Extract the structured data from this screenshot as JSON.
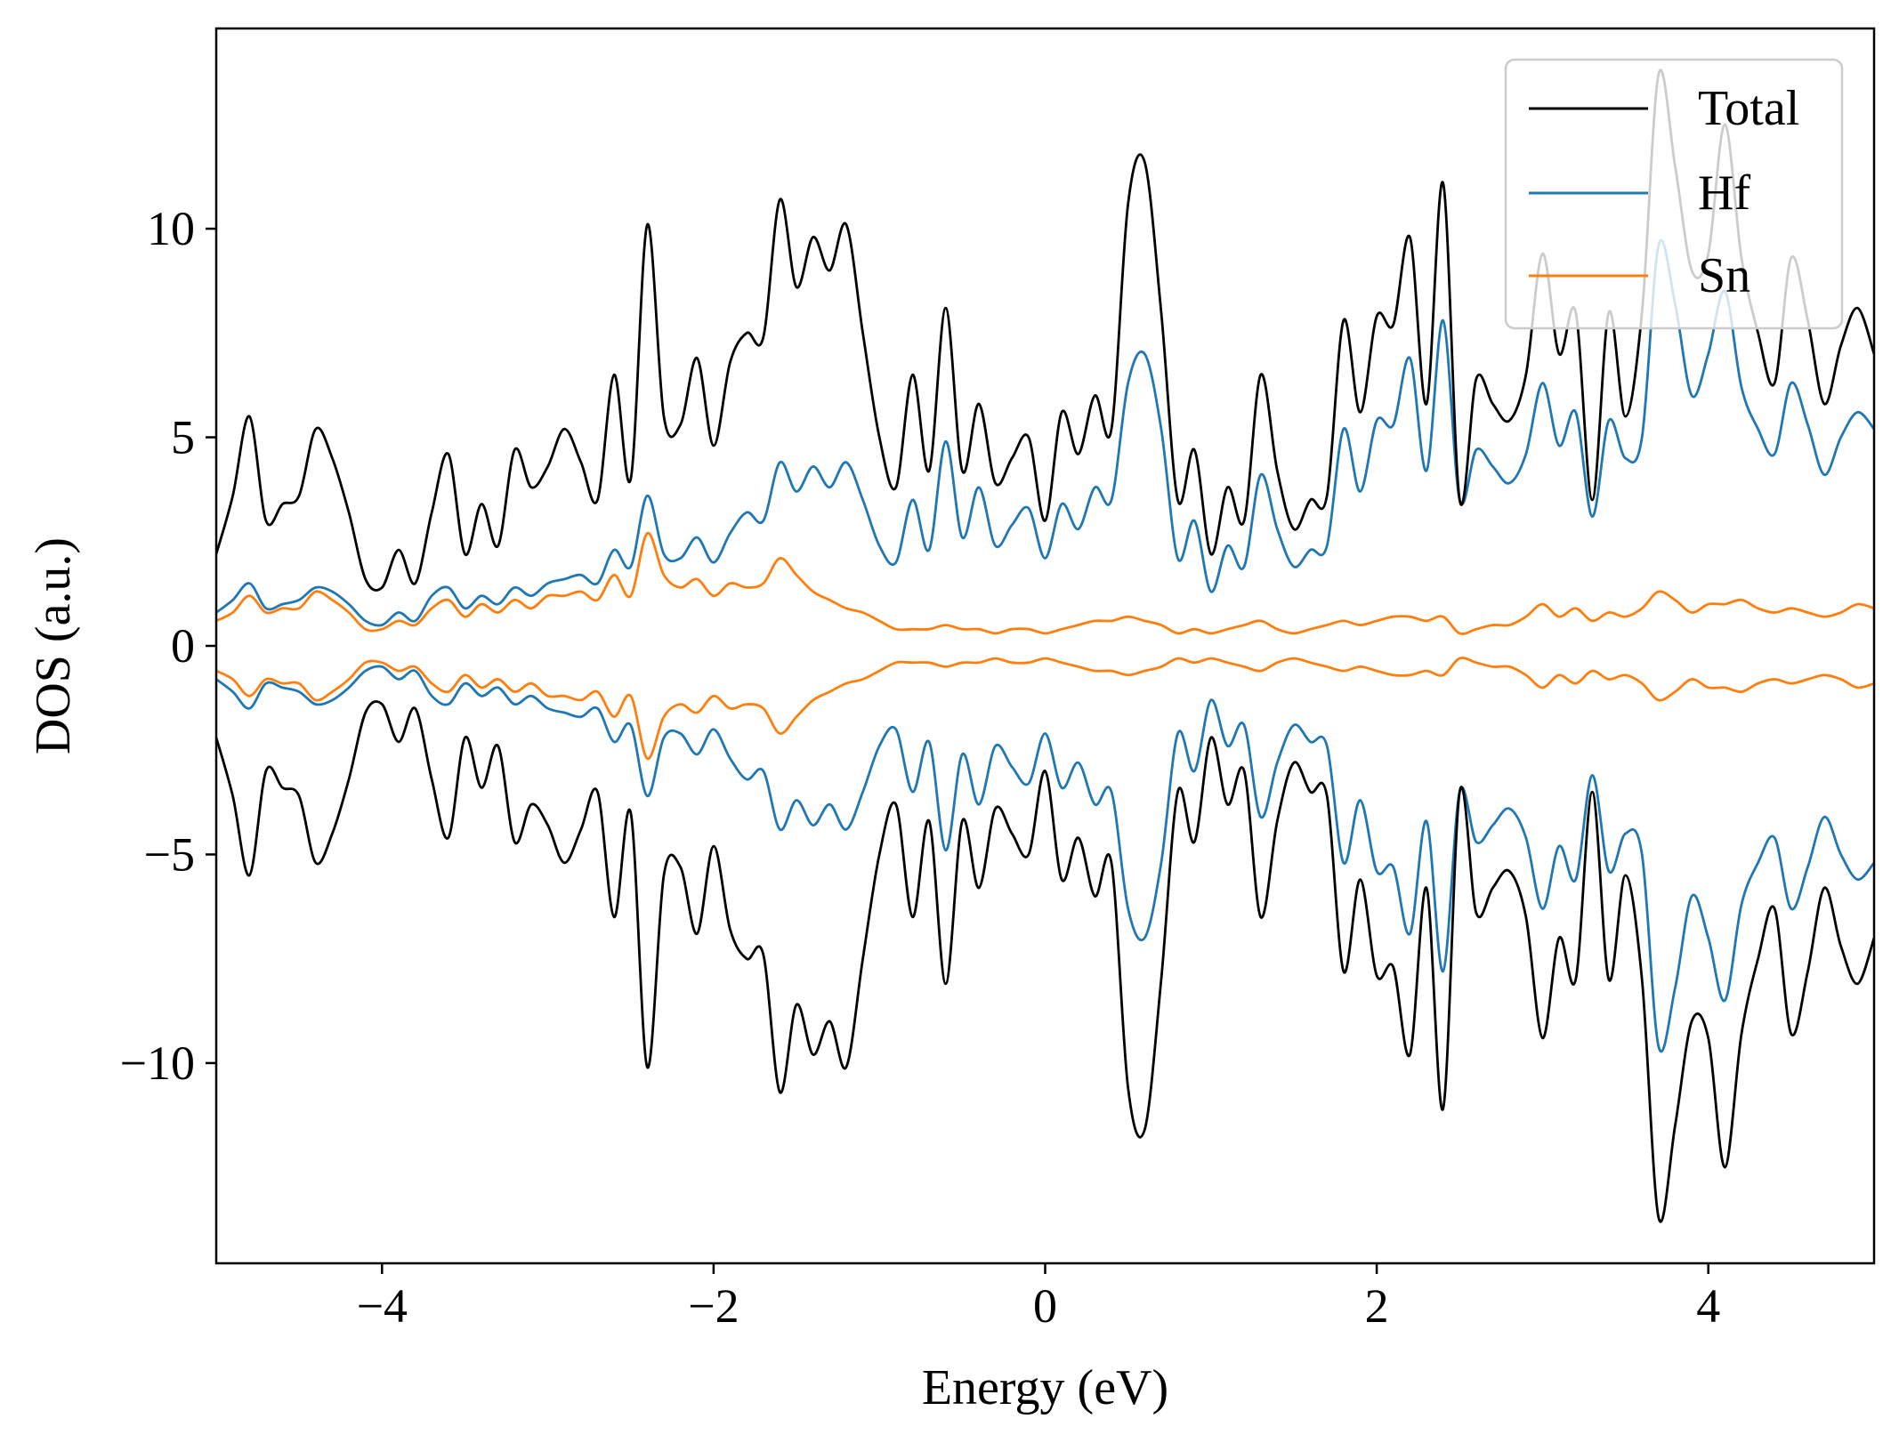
{
  "chart_data": {
    "type": "line",
    "title": "",
    "xlabel": "Energy (eV)",
    "ylabel": "DOS (a.u.)",
    "xlim": [
      -5,
      5
    ],
    "ylim": [
      -14.8,
      14.8
    ],
    "xticks": [
      -4,
      -2,
      0,
      2,
      4
    ],
    "yticks": [
      -10,
      -5,
      0,
      5,
      10
    ],
    "xtick_labels": [
      "−4",
      "−2",
      "0",
      "2",
      "4"
    ],
    "ytick_labels": [
      "−10",
      "−5",
      "0",
      "5",
      "10"
    ],
    "grid": false,
    "legend_position": "top-right",
    "legend": [
      "Total",
      "Hf",
      "Sn"
    ],
    "x": [
      -5.0,
      -4.9,
      -4.8,
      -4.7,
      -4.6,
      -4.5,
      -4.4,
      -4.3,
      -4.2,
      -4.1,
      -4.0,
      -3.9,
      -3.8,
      -3.7,
      -3.6,
      -3.5,
      -3.4,
      -3.3,
      -3.2,
      -3.1,
      -3.0,
      -2.9,
      -2.8,
      -2.7,
      -2.6,
      -2.5,
      -2.4,
      -2.3,
      -2.2,
      -2.1,
      -2.0,
      -1.9,
      -1.8,
      -1.7,
      -1.6,
      -1.5,
      -1.4,
      -1.3,
      -1.2,
      -1.1,
      -1.0,
      -0.9,
      -0.8,
      -0.7,
      -0.6,
      -0.5,
      -0.4,
      -0.3,
      -0.2,
      -0.1,
      0.0,
      0.1,
      0.2,
      0.3,
      0.4,
      0.5,
      0.6,
      0.7,
      0.8,
      0.9,
      1.0,
      1.1,
      1.2,
      1.3,
      1.4,
      1.5,
      1.6,
      1.7,
      1.8,
      1.9,
      2.0,
      2.1,
      2.2,
      2.3,
      2.4,
      2.5,
      2.6,
      2.7,
      2.8,
      2.9,
      3.0,
      3.1,
      3.2,
      3.3,
      3.4,
      3.5,
      3.6,
      3.7,
      3.8,
      3.9,
      4.0,
      4.1,
      4.2,
      4.3,
      4.4,
      4.5,
      4.6,
      4.7,
      4.8,
      4.9,
      5.0
    ],
    "series": [
      {
        "name": "Total",
        "color": "#000000",
        "spin_up": [
          2.2,
          3.6,
          5.5,
          3.0,
          3.4,
          3.6,
          5.2,
          4.5,
          3.2,
          1.6,
          1.4,
          2.3,
          1.5,
          3.2,
          4.6,
          2.2,
          3.4,
          2.4,
          4.7,
          3.8,
          4.3,
          5.2,
          4.4,
          3.5,
          6.5,
          4.0,
          10.1,
          5.5,
          5.3,
          6.9,
          4.8,
          6.8,
          7.5,
          7.4,
          10.7,
          8.6,
          9.8,
          9.0,
          10.1,
          7.5,
          5.0,
          3.8,
          6.5,
          4.2,
          8.1,
          4.2,
          5.8,
          3.9,
          4.5,
          5.0,
          3.0,
          5.6,
          4.6,
          6.0,
          5.2,
          10.6,
          11.6,
          8.0,
          3.5,
          4.7,
          2.2,
          3.8,
          3.0,
          6.5,
          4.2,
          2.8,
          3.5,
          3.6,
          7.8,
          5.6,
          7.9,
          7.7,
          9.8,
          5.8,
          11.1,
          3.5,
          6.4,
          5.8,
          5.4,
          6.5,
          9.4,
          7.0,
          8.0,
          3.5,
          8.0,
          5.5,
          8.0,
          13.7,
          11.5,
          9.0,
          9.4,
          12.5,
          9.3,
          7.5,
          6.3,
          9.3,
          7.8,
          5.8,
          7.2,
          8.1,
          7.0
        ]
      },
      {
        "name": "Hf",
        "color": "#1f77b4",
        "spin_up": [
          0.8,
          1.1,
          1.5,
          0.9,
          1.0,
          1.1,
          1.4,
          1.3,
          1.0,
          0.6,
          0.5,
          0.8,
          0.6,
          1.2,
          1.4,
          0.9,
          1.2,
          1.0,
          1.4,
          1.2,
          1.5,
          1.6,
          1.7,
          1.5,
          2.3,
          1.9,
          3.6,
          2.2,
          2.1,
          2.6,
          2.0,
          2.7,
          3.2,
          3.0,
          4.4,
          3.7,
          4.3,
          3.8,
          4.4,
          3.5,
          2.4,
          2.0,
          3.5,
          2.3,
          4.9,
          2.6,
          3.8,
          2.4,
          2.9,
          3.3,
          2.1,
          3.4,
          2.8,
          3.8,
          3.5,
          6.3,
          7.0,
          5.2,
          2.1,
          3.0,
          1.3,
          2.4,
          1.9,
          4.1,
          2.8,
          1.9,
          2.3,
          2.4,
          5.2,
          3.7,
          5.4,
          5.3,
          6.9,
          4.2,
          7.8,
          3.5,
          4.7,
          4.3,
          3.9,
          4.6,
          6.3,
          4.8,
          5.6,
          3.1,
          5.4,
          4.5,
          5.0,
          9.6,
          8.2,
          6.0,
          7.0,
          8.5,
          6.2,
          5.2,
          4.6,
          6.3,
          5.3,
          4.1,
          5.0,
          5.6,
          5.2
        ]
      },
      {
        "name": "Sn",
        "color": "#ff7f0e",
        "spin_up": [
          0.6,
          0.8,
          1.2,
          0.8,
          0.9,
          0.9,
          1.3,
          1.1,
          0.8,
          0.4,
          0.4,
          0.6,
          0.5,
          0.9,
          1.1,
          0.7,
          1.0,
          0.8,
          1.1,
          0.9,
          1.2,
          1.2,
          1.3,
          1.1,
          1.7,
          1.2,
          2.7,
          1.7,
          1.4,
          1.6,
          1.2,
          1.5,
          1.4,
          1.5,
          2.1,
          1.7,
          1.3,
          1.1,
          0.9,
          0.8,
          0.6,
          0.4,
          0.4,
          0.4,
          0.5,
          0.4,
          0.4,
          0.3,
          0.4,
          0.4,
          0.3,
          0.4,
          0.5,
          0.6,
          0.6,
          0.7,
          0.6,
          0.5,
          0.3,
          0.4,
          0.3,
          0.4,
          0.5,
          0.6,
          0.4,
          0.3,
          0.4,
          0.5,
          0.6,
          0.5,
          0.6,
          0.7,
          0.7,
          0.6,
          0.7,
          0.3,
          0.4,
          0.5,
          0.5,
          0.7,
          1.0,
          0.7,
          0.9,
          0.6,
          0.8,
          0.7,
          0.9,
          1.3,
          1.1,
          0.8,
          1.0,
          1.0,
          1.1,
          0.9,
          0.8,
          0.9,
          0.8,
          0.7,
          0.8,
          1.0,
          0.9
        ]
      }
    ]
  }
}
